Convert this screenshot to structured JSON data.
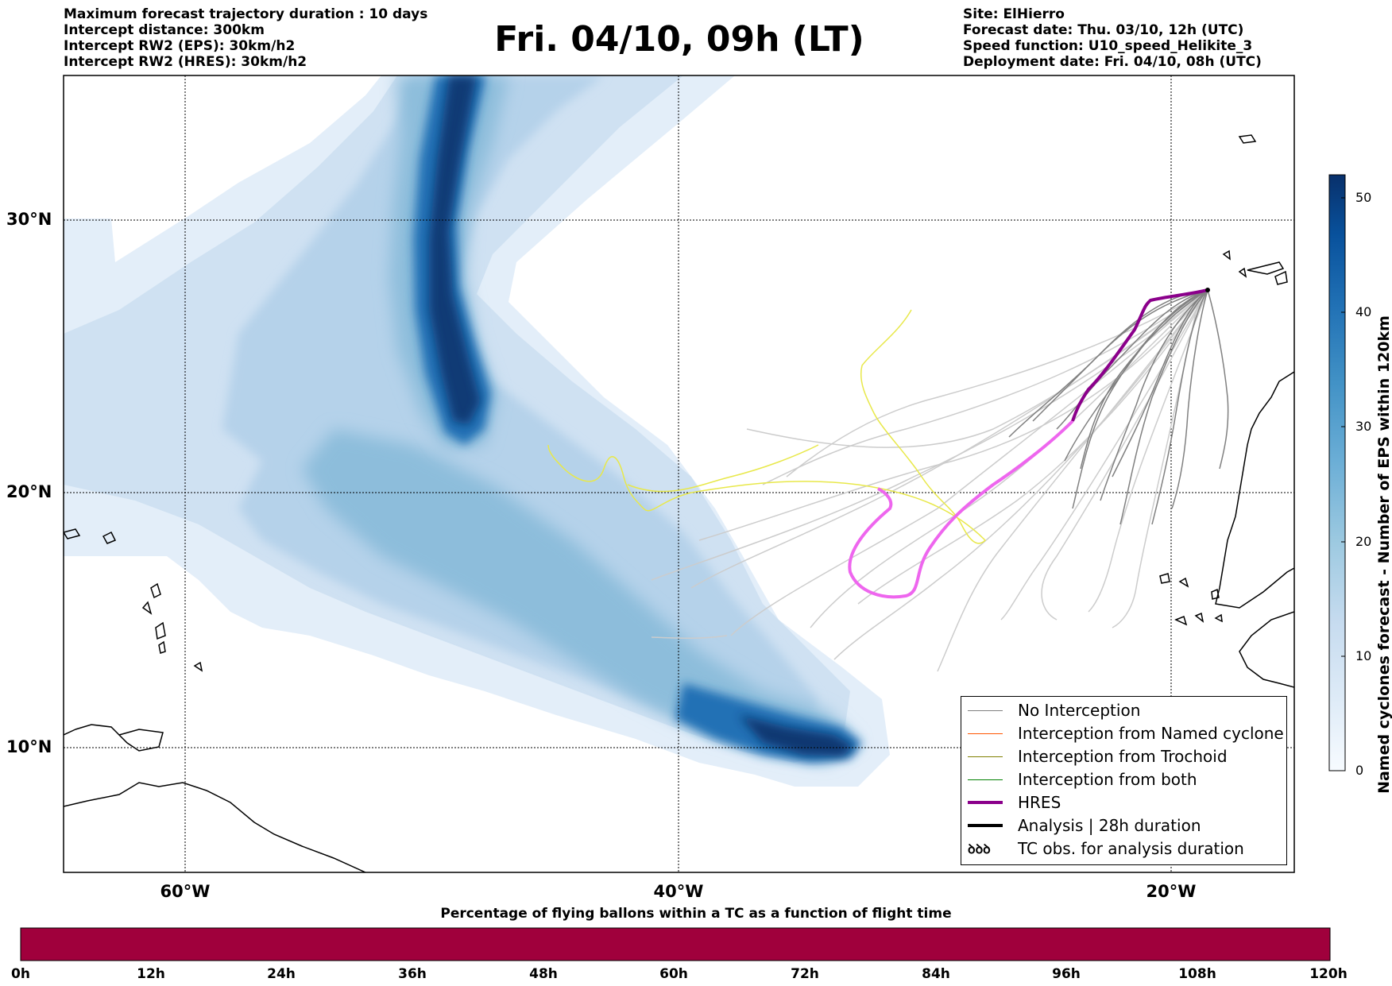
{
  "header": {
    "info_left": [
      "Maximum forecast trajectory duration : 10 days",
      "Intercept distance: 300km",
      "Intercept RW2 (EPS):  30km/h2",
      "Intercept RW2 (HRES): 30km/h2"
    ],
    "title": "Fri. 04/10, 09h (LT)",
    "info_right": [
      "Site: ElHierro",
      "Forecast date: Thu. 03/10, 12h (UTC)",
      "Speed function: U10_speed_Helikite_3",
      "Deployment date: Fri. 04/10, 08h (UTC)"
    ]
  },
  "map": {
    "lat_labels": [
      "30°N",
      "20°N",
      "10°N"
    ],
    "lon_labels": [
      "60°W",
      "40°W",
      "20°W"
    ],
    "extent": {
      "lon_min": -65,
      "lon_max": -15,
      "lat_min": 5.3,
      "lat_max": 35.3
    },
    "colors": {
      "hres": "#8b008b",
      "hres_fringe": "#ee66ee",
      "no_interception": "#808080",
      "yellow_track": "#e8e84a",
      "coast": "#000000"
    }
  },
  "colorbar": {
    "label": "Named cyclones forecast - Number of EPS within 120km",
    "ticks": [
      "0",
      "10",
      "20",
      "30",
      "40",
      "50"
    ],
    "range": [
      0,
      52
    ],
    "colors": [
      "#f7fbff",
      "#deebf7",
      "#c6dbef",
      "#9ecae1",
      "#6baed6",
      "#4292c6",
      "#2171b5",
      "#08519c",
      "#08306b"
    ]
  },
  "legend": {
    "items": [
      {
        "label": "No Interception",
        "color": "#808080",
        "kind": "thin"
      },
      {
        "label": "Interception from Named cyclone",
        "color": "#ff5500",
        "kind": "thin"
      },
      {
        "label": "Interception from Trochoid",
        "color": "#808000",
        "kind": "thin"
      },
      {
        "label": "Interception from both",
        "color": "#008000",
        "kind": "thin"
      },
      {
        "label": "HRES",
        "color": "#8b008b",
        "kind": "thick"
      },
      {
        "label": "Analysis | 28h duration",
        "color": "#000000",
        "kind": "thick"
      },
      {
        "label": "TC obs. for analysis duration",
        "color": "#000000",
        "kind": "glyph",
        "glyph": "ꝺꝺꝺ"
      }
    ]
  },
  "timebar": {
    "title": "Percentage of flying ballons within a TC as a function of flight time",
    "labels": [
      "0h",
      "12h",
      "24h",
      "36h",
      "48h",
      "60h",
      "72h",
      "84h",
      "96h",
      "108h",
      "120h"
    ],
    "color": "#a0003c"
  }
}
